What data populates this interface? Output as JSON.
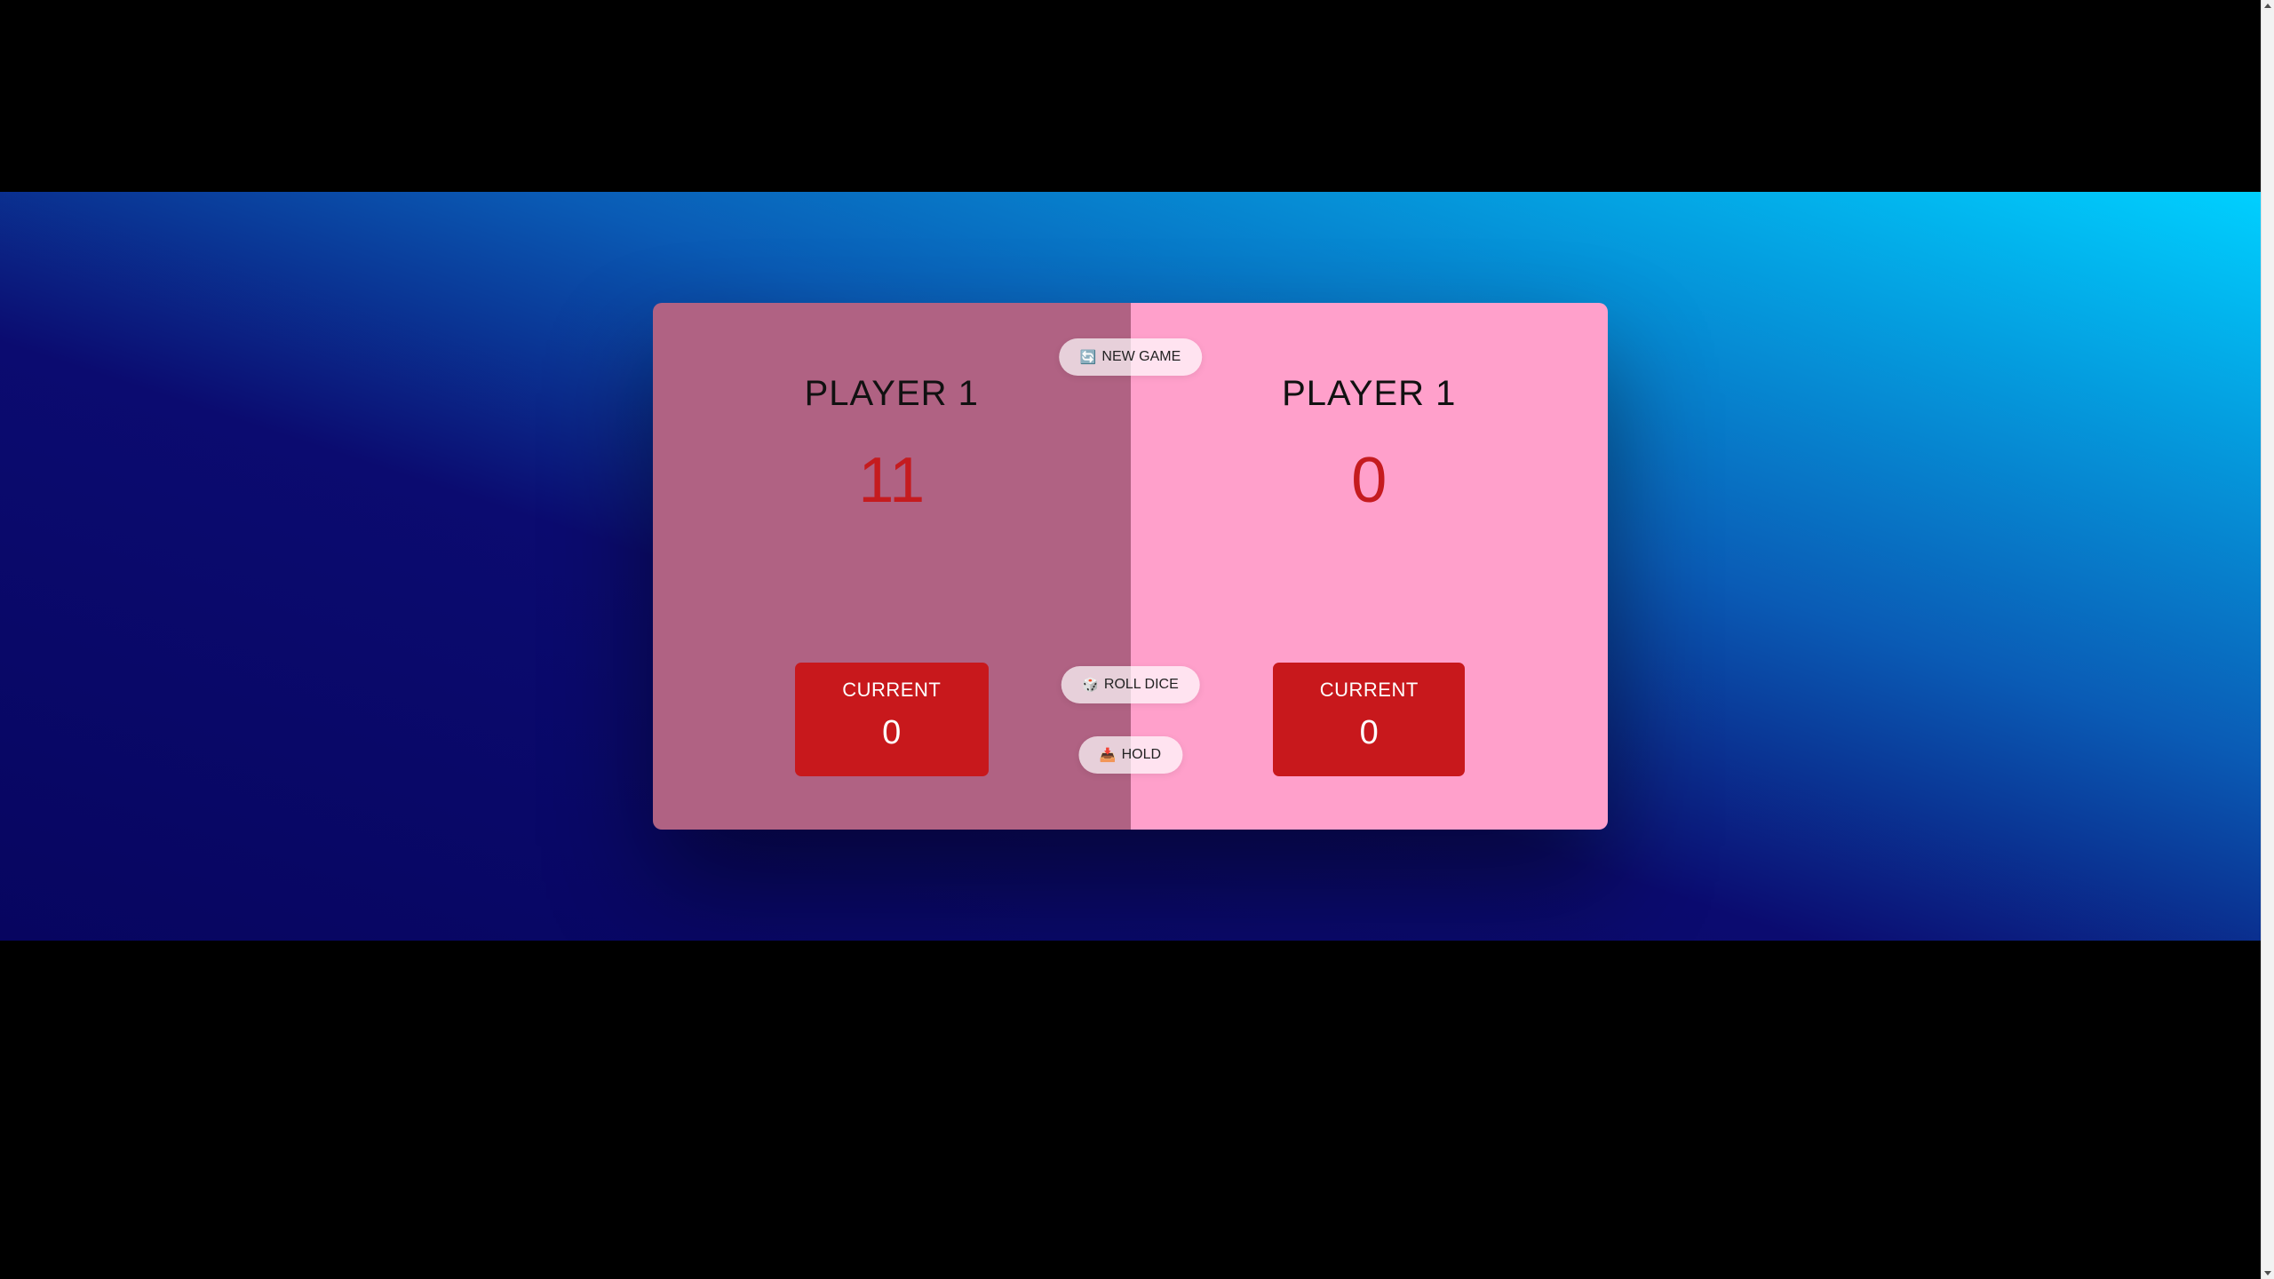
{
  "players": [
    {
      "name": "PLAYER 1",
      "score": "11",
      "current_label": "CURRENT",
      "current_score": "0",
      "active": true
    },
    {
      "name": "PLAYER 1",
      "score": "0",
      "current_label": "CURRENT",
      "current_score": "0",
      "active": false
    }
  ],
  "buttons": {
    "new_game": {
      "icon": "🔄",
      "label": "NEW GAME"
    },
    "roll_dice": {
      "icon": "🎲",
      "label": "ROLL DICE"
    },
    "hold": {
      "icon": "📥",
      "label": "HOLD"
    }
  },
  "colors": {
    "active_panel": "#b06283",
    "inactive_panel": "#ffa0cb",
    "score_text": "#c51b1f",
    "current_box": "#c8181c",
    "background_gradient_start": "#070560",
    "background_gradient_end": "#00d0ff"
  }
}
